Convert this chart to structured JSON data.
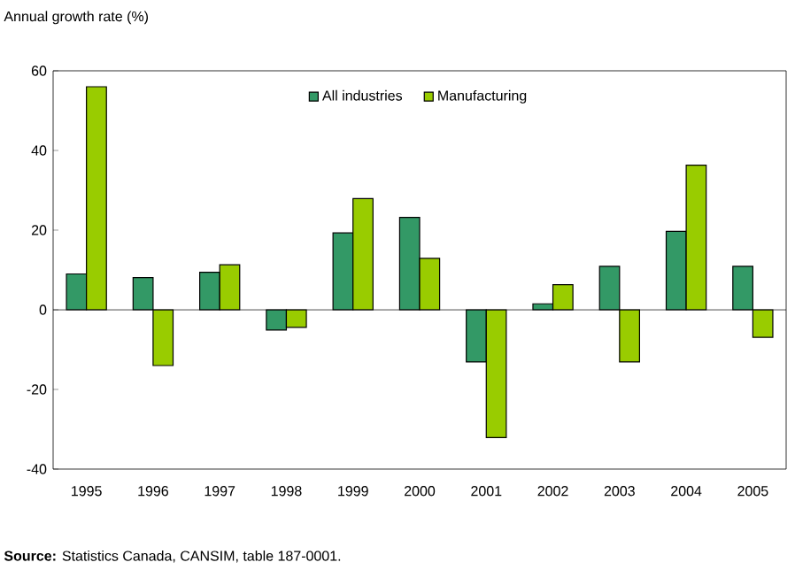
{
  "chart_data": {
    "type": "bar",
    "ylabel": "Annual growth rate (%)",
    "categories": [
      "1995",
      "1996",
      "1997",
      "1998",
      "1999",
      "2000",
      "2001",
      "2002",
      "2003",
      "2004",
      "2005"
    ],
    "series": [
      {
        "name": "All industries",
        "color": "#339966",
        "values": [
          9.0,
          8.1,
          9.4,
          -5.1,
          19.3,
          23.2,
          -13.1,
          1.5,
          10.9,
          19.7,
          10.9
        ]
      },
      {
        "name": "Manufacturing",
        "color": "#99cc00",
        "values": [
          56.0,
          -14.0,
          11.3,
          -4.4,
          27.9,
          12.9,
          -32.1,
          6.3,
          -13.1,
          36.3,
          -6.9
        ]
      }
    ],
    "ylim": [
      -40,
      60
    ],
    "yticks": [
      -40,
      -20,
      0,
      20,
      40,
      60
    ],
    "legend": "top",
    "ref_lines": [
      {
        "axis": "y",
        "value": 0,
        "color": "#000000"
      }
    ],
    "annotations": [
      "**Source:** Statistics Canada, CANSIM, table 187-0001."
    ]
  }
}
